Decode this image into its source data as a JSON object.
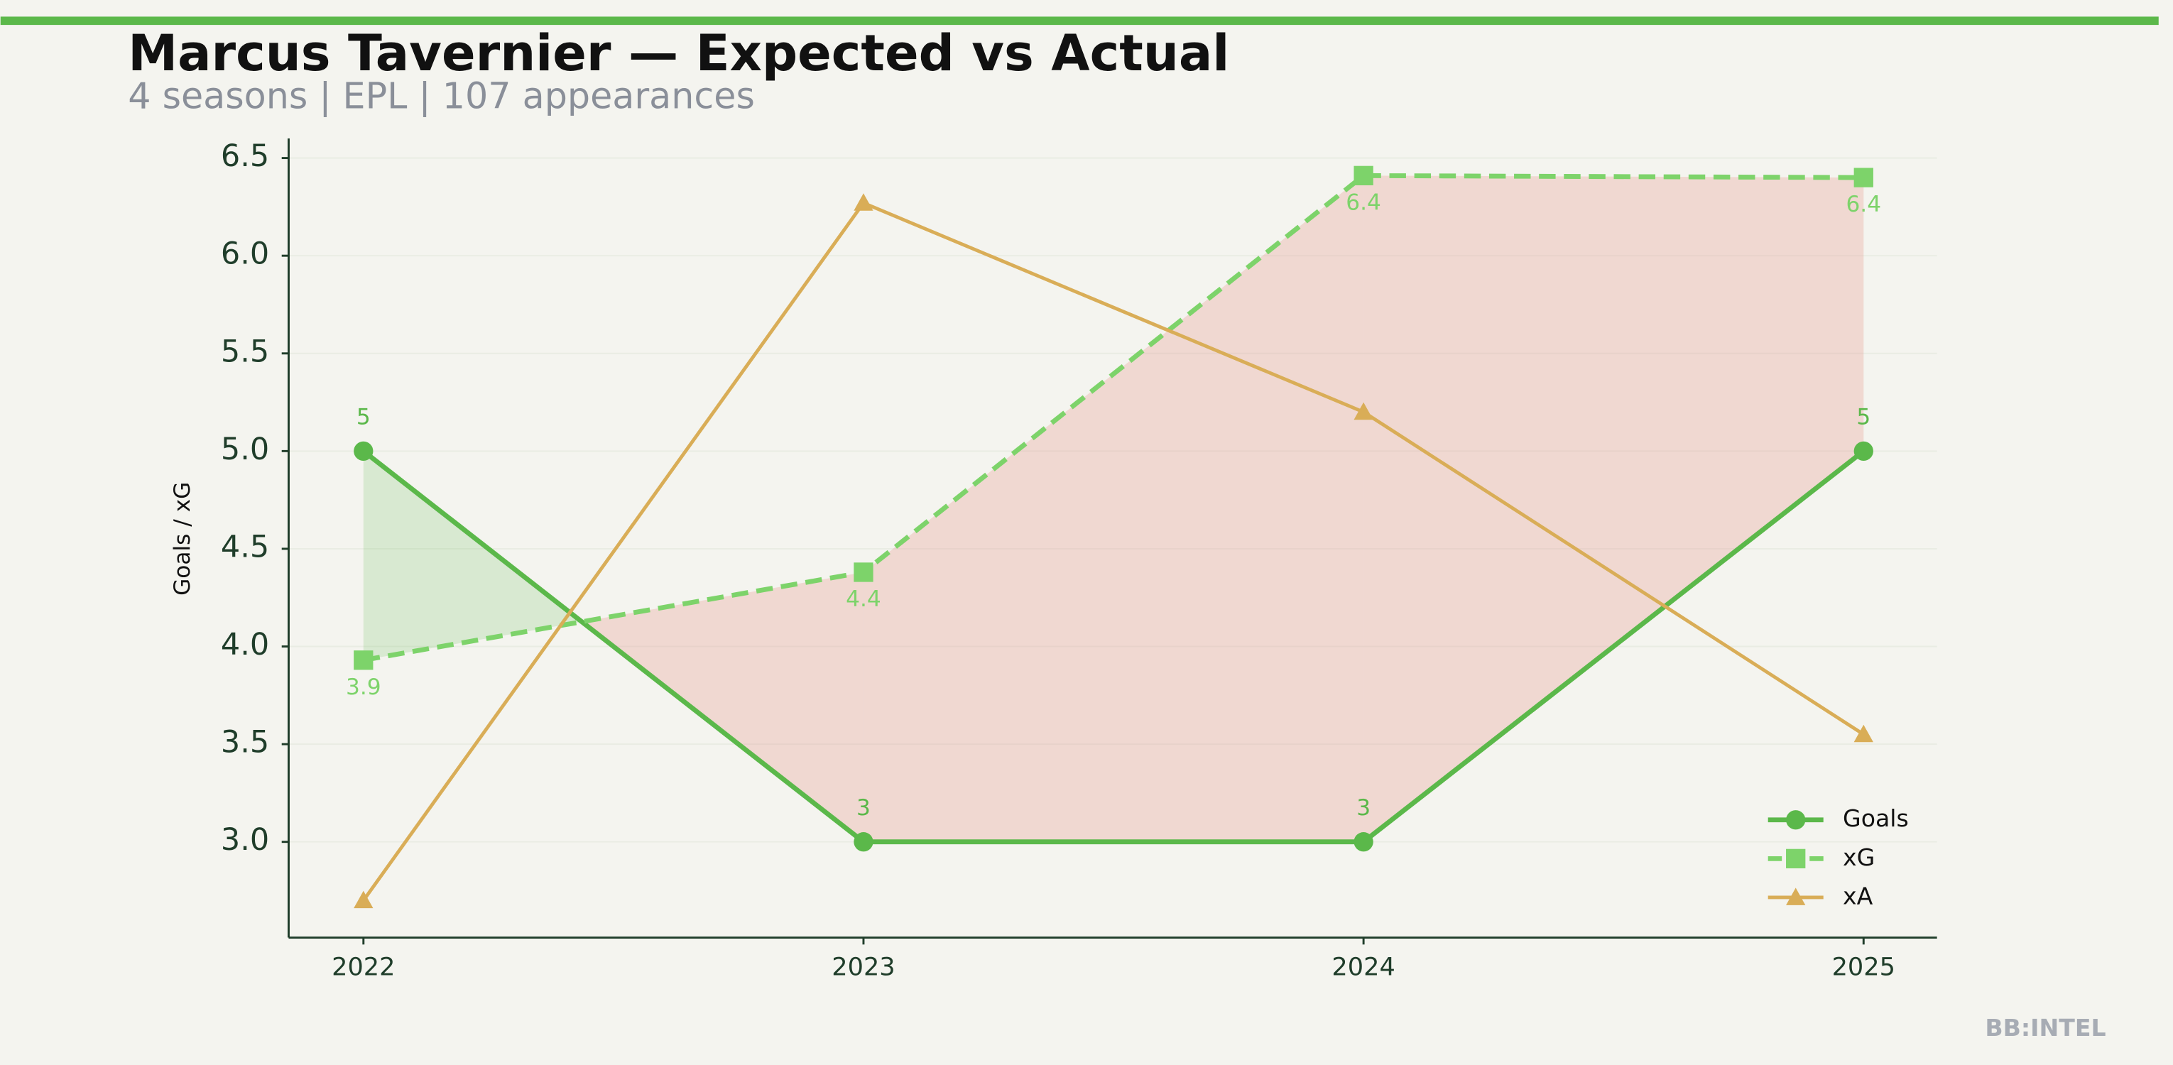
{
  "chart_data": {
    "type": "line",
    "title": "Marcus Tavernier — Expected vs Actual",
    "subtitle": "4 seasons | EPL | 107 appearances",
    "ylabel": "Goals / xG",
    "footer": "BB:INTEL",
    "categories": [
      "2022",
      "2023",
      "2024",
      "2025"
    ],
    "series": [
      {
        "name": "Goals",
        "color": "#5bb84a",
        "marker": "circle",
        "linestyle": "solid",
        "values": [
          5,
          3,
          3,
          5
        ]
      },
      {
        "name": "xG",
        "color": "#7dd36a",
        "marker": "square",
        "linestyle": "dashed",
        "values": [
          3.93,
          4.38,
          6.41,
          6.4
        ],
        "value_labels": [
          "3.9",
          "4.4",
          "6.4",
          "6.4"
        ]
      },
      {
        "name": "xA",
        "color": "#d9ad57",
        "marker": "triangle",
        "linestyle": "solid",
        "values": [
          2.7,
          6.27,
          5.2,
          3.55
        ]
      }
    ],
    "fill_between": {
      "over_color": "#5bb84a",
      "under_color": "#e8a29a"
    },
    "ylim": [
      2.51,
      6.6
    ],
    "yticks": [
      {
        "value": 3,
        "label": "3.0"
      },
      {
        "value": 3.5,
        "label": "3.5"
      },
      {
        "value": 4,
        "label": "4.0"
      },
      {
        "value": 4.5,
        "label": "4.5"
      },
      {
        "value": 5,
        "label": "5.0"
      },
      {
        "value": 5.5,
        "label": "5.5"
      },
      {
        "value": 6,
        "label": "6.0"
      },
      {
        "value": 6.5,
        "label": "6.5"
      }
    ],
    "grid": true,
    "legend": "lower right"
  }
}
